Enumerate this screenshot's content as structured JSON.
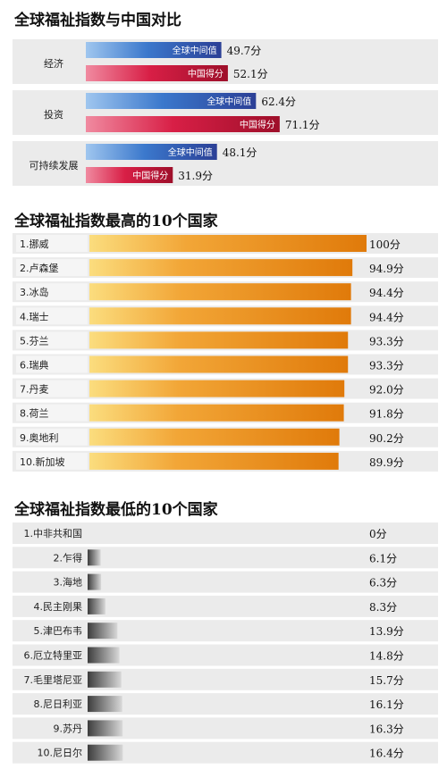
{
  "chart_data": [
    {
      "type": "bar",
      "title": "全球福祉指数与中国对比",
      "categories": [
        "经济",
        "投资",
        "可持续发展"
      ],
      "series": [
        {
          "name": "全球中间值",
          "values": [
            49.7,
            62.4,
            48.1
          ]
        },
        {
          "name": "中国得分",
          "values": [
            52.1,
            71.1,
            31.9
          ]
        }
      ],
      "value_labels": {
        "全球中间值": [
          "49.7分",
          "62.4分",
          "48.1分"
        ],
        "中国得分": [
          "52.1分",
          "71.1分",
          "31.9分"
        ]
      },
      "xlim": [
        0,
        100
      ],
      "colors": {
        "全球中间值": "#3f61b4",
        "中国得分": "#c01632"
      }
    },
    {
      "type": "bar",
      "title": "全球福祉指数最高的10个国家",
      "categories": [
        "1.挪威",
        "2.卢森堡",
        "3.冰岛",
        "4.瑞士",
        "5.芬兰",
        "6.瑞典",
        "7.丹麦",
        "8.荷兰",
        "9.奥地利",
        "10.新加坡"
      ],
      "values": [
        100,
        94.9,
        94.4,
        94.4,
        93.3,
        93.3,
        92.0,
        91.8,
        90.2,
        89.9
      ],
      "value_labels": [
        "100分",
        "94.9分",
        "94.4分",
        "94.4分",
        "93.3分",
        "93.3分",
        "92.0分",
        "91.8分",
        "90.2分",
        "89.9分"
      ],
      "xlim": [
        0,
        100
      ],
      "colors": {
        "bar": "#e8860c"
      }
    },
    {
      "type": "bar",
      "title": "全球福祉指数最低的10个国家",
      "categories": [
        "1.中非共和国",
        "2.乍得",
        "3.海地",
        "4.民主刚果",
        "5.津巴布韦",
        "6.厄立特里亚",
        "7.毛里塔尼亚",
        "8.尼日利亚",
        "9.苏丹",
        "10.尼日尔"
      ],
      "values": [
        0,
        6.1,
        6.3,
        8.3,
        13.9,
        14.8,
        15.7,
        16.1,
        16.3,
        16.4
      ],
      "value_labels": [
        "0分",
        "6.1分",
        "6.3分",
        "8.3分",
        "13.9分",
        "14.8分",
        "15.7分",
        "16.1分",
        "16.3分",
        "16.4分"
      ],
      "xlim": [
        0,
        100
      ],
      "colors": {
        "bar": "#6a6a6a"
      }
    }
  ]
}
